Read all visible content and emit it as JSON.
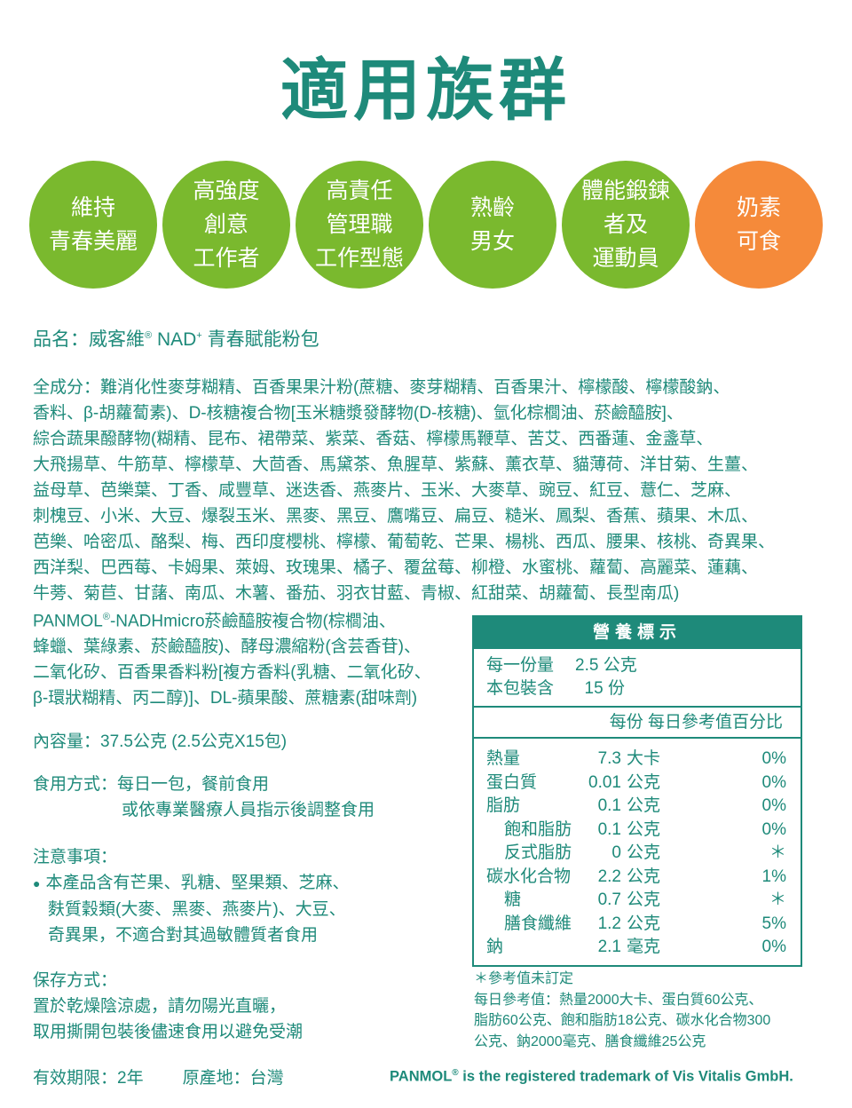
{
  "title": "適用族群",
  "colors": {
    "teal": "#1e8a7a",
    "green": "#7ab92e",
    "orange": "#f58a3a"
  },
  "groups": [
    {
      "lines": [
        "維持",
        "青春美麗"
      ]
    },
    {
      "lines": [
        "高強度",
        "創意",
        "工作者"
      ]
    },
    {
      "lines": [
        "高責任",
        "管理職",
        "工作型態"
      ]
    },
    {
      "lines": [
        "熟齡",
        "男女"
      ]
    },
    {
      "lines": [
        "體能鍛鍊",
        "者及",
        "運動員"
      ]
    },
    {
      "lines": [
        "奶素",
        "可食"
      ]
    }
  ],
  "product_name": {
    "label": "品名：威客維",
    "reg": "®",
    "nad": " NAD",
    "plus": "+",
    "rest": " 青春賦能粉包"
  },
  "ingredients": [
    "全成分：難消化性麥芽糊精、百香果果汁粉(蔗糖、麥芽糊精、百香果汁、檸檬酸、檸檬酸鈉、",
    "香料、β-胡蘿蔔素)、D-核糖複合物[玉米糖漿發酵物(D-核糖)、氫化棕櫚油、菸鹼醯胺]、",
    "綜合蔬果醱酵物(糊精、昆布、裙帶菜、紫菜、香菇、檸檬馬鞭草、苦艾、西番蓮、金盞草、",
    "大飛揚草、牛筋草、檸檬草、大茴香、馬黛茶、魚腥草、紫蘇、薰衣草、貓薄荷、洋甘菊、生薑、",
    "益母草、芭樂葉、丁香、咸豐草、迷迭香、燕麥片、玉米、大麥草、豌豆、紅豆、薏仁、芝麻、",
    "刺槐豆、小米、大豆、爆裂玉米、黑麥、黑豆、鷹嘴豆、扁豆、糙米、鳳梨、香蕉、蘋果、木瓜、",
    "芭樂、哈密瓜、酪梨、梅、西印度櫻桃、檸檬、葡萄乾、芒果、楊桃、西瓜、腰果、核桃、奇異果、",
    "西洋梨、巴西莓、卡姆果、萊姆、玫瑰果、橘子、覆盆莓、柳橙、水蜜桃、蘿蔔、高麗菜、蓮藕、",
    "牛蒡、菊苣、甘藷、南瓜、木薯、番茄、羽衣甘藍、青椒、紅甜菜、胡蘿蔔、長型南瓜)"
  ],
  "ingredients2": {
    "first_a": "PANMOL",
    "first_reg": "®",
    "first_b": "-NADHmicro菸鹼醯胺複合物(棕櫚油、",
    "lines": [
      "蜂蠟、葉綠素、菸鹼醯胺)、酵母濃縮粉(含芸香苷)、",
      "二氧化矽、百香果香料粉[複方香料(乳糖、二氧化矽、",
      "β-環狀糊精、丙二醇)]、DL-蘋果酸、蔗糖素(甜味劑)"
    ]
  },
  "contents": "內容量：37.5公克 (2.5公克X15包)",
  "usage": [
    "食用方式：每日一包，餐前食用",
    "或依專業醫療人員指示後調整食用"
  ],
  "notes": {
    "heading": "注意事項：",
    "bullet": "●",
    "lines": [
      "本產品含有芒果、乳糖、堅果類、芝麻、",
      "麩質穀類(大麥、黑麥、燕麥片)、大豆、",
      "奇異果，不適合對其過敏體質者食用"
    ]
  },
  "storage": [
    "保存方式：",
    "置於乾燥陰涼處，請勿陽光直曬，",
    "取用撕開包裝後儘速食用以避免受潮"
  ],
  "expiry": "有效期限：2年",
  "origin": "原產地：台灣",
  "nutrition": {
    "title": "營養標示",
    "serving": [
      {
        "label": "每一份量",
        "value": "2.5 公克"
      },
      {
        "label": "本包裝含",
        "value": "  15 份"
      }
    ],
    "columns": "每份 每日參考值百分比",
    "rows": [
      {
        "name": "熱量",
        "value": "7.3",
        "unit": "大卡",
        "pct": "0%",
        "sub": false
      },
      {
        "name": "蛋白質",
        "value": "0.01",
        "unit": "公克",
        "pct": "0%",
        "sub": false
      },
      {
        "name": "脂肪",
        "value": "0.1",
        "unit": "公克",
        "pct": "0%",
        "sub": false
      },
      {
        "name": "飽和脂肪",
        "value": "0.1",
        "unit": "公克",
        "pct": "0%",
        "sub": true
      },
      {
        "name": "反式脂肪",
        "value": "0",
        "unit": "公克",
        "pct": "＊",
        "sub": true
      },
      {
        "name": "碳水化合物",
        "value": "2.2",
        "unit": "公克",
        "pct": "1%",
        "sub": false
      },
      {
        "name": "糖",
        "value": "0.7",
        "unit": "公克",
        "pct": "＊",
        "sub": true
      },
      {
        "name": "膳食纖維",
        "value": "1.2",
        "unit": "公克",
        "pct": "5%",
        "sub": true
      },
      {
        "name": "鈉",
        "value": "2.1",
        "unit": "毫克",
        "pct": "0%",
        "sub": false
      }
    ],
    "footnotes": [
      "＊參考值未訂定",
      "每日參考值：熱量2000大卡、蛋白質60公克、",
      "脂肪60公克、飽和脂肪18公克、碳水化合物300",
      "公克、鈉2000毫克、膳食纖維25公克"
    ]
  },
  "trademark": {
    "a": "PANMOL",
    "reg": "®",
    "b": " is the registered trademark of Vis Vitalis GmbH."
  }
}
